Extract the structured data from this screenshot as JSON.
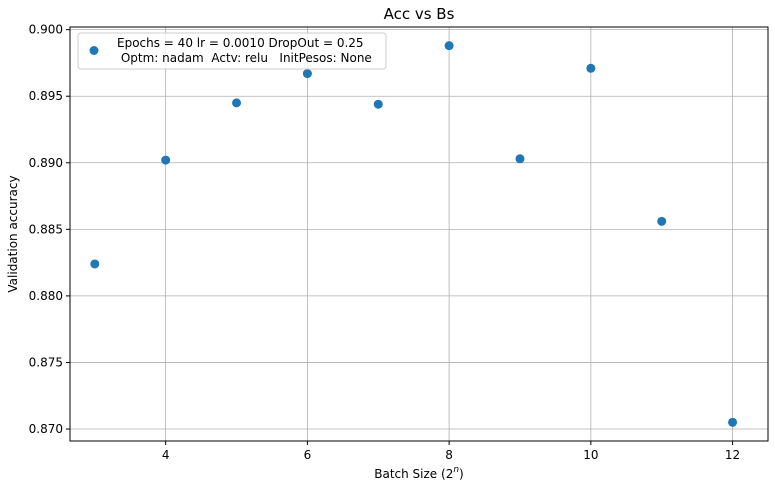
{
  "chart_data": {
    "type": "scatter",
    "title": "Acc vs Bs",
    "xlabel": "Batch Size (2",
    "xlabel_sup": "n",
    "xlabel_suffix": ")",
    "ylabel": "Validation accuracy",
    "xlim": [
      2.65,
      12.5
    ],
    "ylim": [
      0.8691,
      0.9002
    ],
    "x_ticks": [
      4,
      6,
      8,
      10,
      12
    ],
    "y_ticks": [
      0.87,
      0.875,
      0.88,
      0.885,
      0.89,
      0.895,
      0.9
    ],
    "x_tick_labels": [
      "4",
      "6",
      "8",
      "10",
      "12"
    ],
    "y_tick_labels": [
      "0.870",
      "0.875",
      "0.880",
      "0.885",
      "0.890",
      "0.895",
      "0.900"
    ],
    "grid": true,
    "legend_position": "top-left",
    "series": [
      {
        "name": "Epochs = 40 lr = 0.0010 DropOut = 0.25\n Optm: nadam  Actv: relu   InitPesos: None",
        "color": "#1f77b4",
        "x": [
          3,
          4,
          5,
          6,
          7,
          8,
          9,
          10,
          11,
          12
        ],
        "y": [
          0.8824,
          0.8902,
          0.8945,
          0.8967,
          0.8944,
          0.8988,
          0.8903,
          0.8971,
          0.8856,
          0.8705
        ]
      }
    ]
  }
}
